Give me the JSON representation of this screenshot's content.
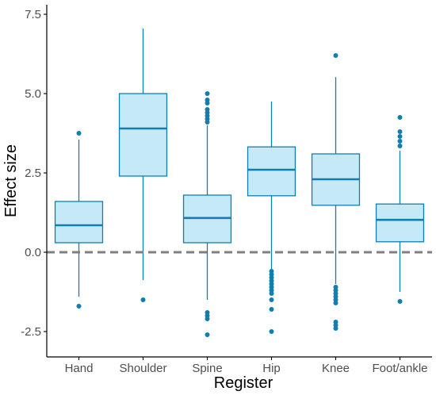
{
  "chart_data": {
    "type": "box",
    "xlabel": "Register",
    "ylabel": "Effect size",
    "ylim": [
      -3.3,
      7.8
    ],
    "yticks": [
      -2.5,
      0.0,
      2.5,
      5.0,
      7.5
    ],
    "ytick_labels": [
      "-2.5",
      "0.0",
      "2.5",
      "5.0",
      "7.5"
    ],
    "grid": false,
    "reference_line": {
      "y": 0.0,
      "style": "dashed"
    },
    "colors": {
      "box_fill": "#c5e9f7",
      "box_stroke": "#0f7fb2",
      "median": "#0f7fb2",
      "outlier": "#0f7fb2",
      "reference_line": "#7f7f7f",
      "axis": "#000000"
    },
    "categories": [
      "Hand",
      "Shoulder",
      "Spine",
      "Hip",
      "Knee",
      "Foot/ankle"
    ],
    "boxes": [
      {
        "category": "Hand",
        "whisker_low": -1.4,
        "q1": 0.3,
        "median": 0.85,
        "q3": 1.6,
        "whisker_high": 3.55,
        "outliers": [
          3.75,
          -1.7
        ]
      },
      {
        "category": "Shoulder",
        "whisker_low": -0.88,
        "q1": 2.4,
        "median": 3.9,
        "q3": 5.0,
        "whisker_high": 7.05,
        "outliers": [
          -1.5
        ]
      },
      {
        "category": "Spine",
        "whisker_low": -1.5,
        "q1": 0.3,
        "median": 1.08,
        "q3": 1.8,
        "whisker_high": 4.0,
        "outliers": [
          5.0,
          4.8,
          4.7,
          4.5,
          4.4,
          4.3,
          4.2,
          4.1,
          -1.9,
          -2.0,
          -2.1,
          -2.6
        ]
      },
      {
        "category": "Hip",
        "whisker_low": -0.55,
        "q1": 1.78,
        "median": 2.6,
        "q3": 3.32,
        "whisker_high": 4.75,
        "outliers": [
          -0.6,
          -0.7,
          -0.8,
          -0.9,
          -1.0,
          -1.1,
          -1.2,
          -1.3,
          -1.5,
          -1.8,
          -2.5
        ]
      },
      {
        "category": "Knee",
        "whisker_low": -1.0,
        "q1": 1.48,
        "median": 2.3,
        "q3": 3.1,
        "whisker_high": 5.52,
        "outliers": [
          6.2,
          -1.1,
          -1.2,
          -1.3,
          -1.4,
          -1.5,
          -1.6,
          -2.2,
          -2.3,
          -2.4
        ]
      },
      {
        "category": "Foot/ankle",
        "whisker_low": -1.25,
        "q1": 0.33,
        "median": 1.02,
        "q3": 1.52,
        "whisker_high": 3.2,
        "outliers": [
          4.25,
          3.8,
          3.65,
          3.5,
          3.35,
          -1.55
        ]
      }
    ]
  }
}
